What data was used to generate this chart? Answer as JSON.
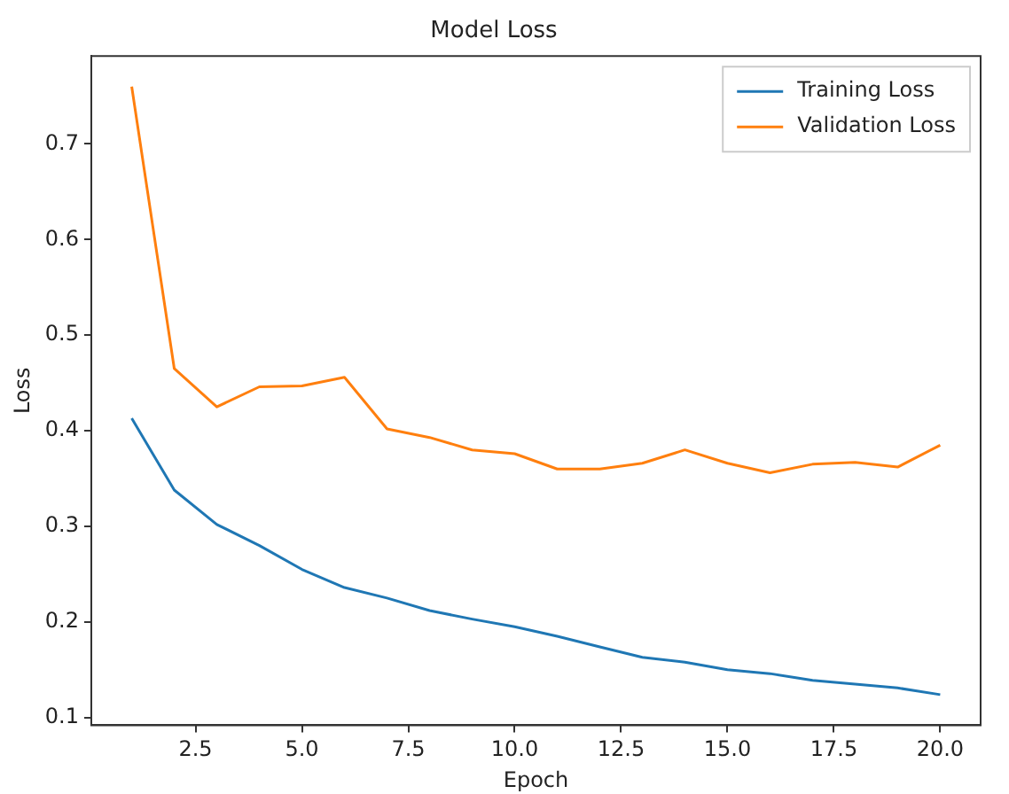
{
  "chart_data": {
    "type": "line",
    "title": "Model Loss",
    "xlabel": "Epoch",
    "ylabel": "Loss",
    "x": [
      1,
      2,
      3,
      4,
      5,
      6,
      7,
      8,
      9,
      10,
      11,
      12,
      13,
      14,
      15,
      16,
      17,
      18,
      19,
      20
    ],
    "series": [
      {
        "name": "Training Loss",
        "color": "#1f77b4",
        "values": [
          0.413,
          0.338,
          0.302,
          0.28,
          0.255,
          0.236,
          0.225,
          0.212,
          0.203,
          0.195,
          0.185,
          0.174,
          0.163,
          0.158,
          0.15,
          0.146,
          0.139,
          0.135,
          0.131,
          0.124
        ]
      },
      {
        "name": "Validation Loss",
        "color": "#ff7f0e",
        "values": [
          0.76,
          0.465,
          0.425,
          0.446,
          0.447,
          0.456,
          0.402,
          0.393,
          0.38,
          0.376,
          0.36,
          0.36,
          0.366,
          0.38,
          0.366,
          0.356,
          0.365,
          0.367,
          0.362,
          0.385
        ]
      }
    ],
    "xlim": [
      0.05,
      20.95
    ],
    "xticks": [
      {
        "value": 2.5,
        "label": "2.5"
      },
      {
        "value": 5,
        "label": "5.0"
      },
      {
        "value": 7.5,
        "label": "7.5"
      },
      {
        "value": 10,
        "label": "10.0"
      },
      {
        "value": 12.5,
        "label": "12.5"
      },
      {
        "value": 15,
        "label": "15.0"
      },
      {
        "value": 17.5,
        "label": "17.5"
      },
      {
        "value": 20,
        "label": "20.0"
      }
    ],
    "ylim": [
      0.092,
      0.792
    ],
    "yticks": [
      0.1,
      0.2,
      0.3,
      0.4,
      0.5,
      0.6,
      0.7
    ],
    "grid": false,
    "legend": "top right",
    "marker": "none",
    "line_style": "solid"
  }
}
